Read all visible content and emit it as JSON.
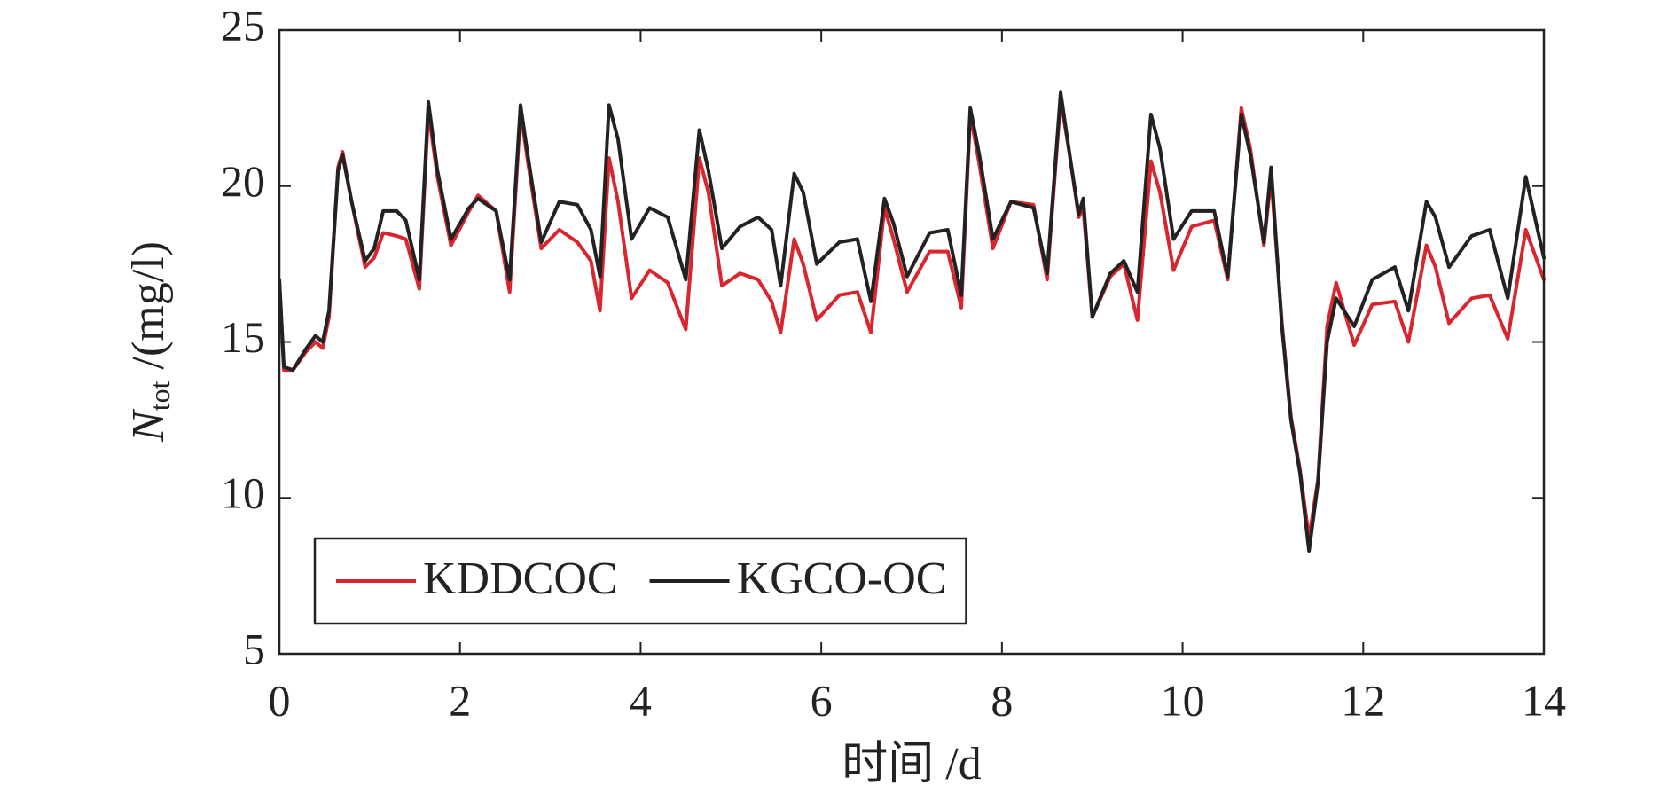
{
  "chart_data": {
    "type": "line",
    "xlabel": "时间 /d",
    "ylabel": [
      "N",
      "tot",
      " /(mg/l)"
    ],
    "xlim": [
      0,
      14
    ],
    "ylim": [
      5,
      25
    ],
    "xticks": [
      0,
      2,
      4,
      6,
      8,
      10,
      12,
      14
    ],
    "yticks": [
      5,
      10,
      15,
      20,
      25
    ],
    "legend": "lower left",
    "legend_columns": 2,
    "grid": false,
    "x": [
      0,
      0.05,
      0.15,
      0.3,
      0.4,
      0.48,
      0.55,
      0.65,
      0.7,
      0.8,
      0.95,
      1.05,
      1.15,
      1.3,
      1.4,
      1.55,
      1.65,
      1.75,
      1.9,
      2.1,
      2.2,
      2.4,
      2.55,
      2.67,
      2.75,
      2.9,
      3.1,
      3.3,
      3.45,
      3.55,
      3.65,
      3.75,
      3.9,
      4.1,
      4.3,
      4.5,
      4.65,
      4.75,
      4.9,
      5.1,
      5.3,
      5.45,
      5.55,
      5.7,
      5.8,
      5.95,
      6.2,
      6.4,
      6.55,
      6.7,
      6.8,
      6.95,
      7.2,
      7.4,
      7.55,
      7.65,
      7.75,
      7.9,
      8.1,
      8.35,
      8.5,
      8.65,
      8.75,
      8.85,
      8.9,
      9.0,
      9.2,
      9.35,
      9.5,
      9.65,
      9.75,
      9.9,
      10.1,
      10.35,
      10.5,
      10.65,
      10.75,
      10.9,
      10.98,
      11.1,
      11.2,
      11.3,
      11.4,
      11.5,
      11.6,
      11.7,
      11.9,
      12.1,
      12.35,
      12.5,
      12.7,
      12.8,
      12.95,
      13.2,
      13.4,
      13.6,
      13.8,
      13.9,
      14.0
    ],
    "series": [
      {
        "name": "KDDCOC",
        "color": "#d9262e",
        "values": [
          17,
          14.1,
          14.1,
          14.7,
          15.0,
          14.8,
          15.8,
          20.6,
          21.1,
          19.5,
          17.4,
          17.7,
          18.5,
          18.4,
          18.3,
          16.7,
          22.4,
          20.3,
          18.1,
          19.2,
          19.7,
          19.2,
          16.6,
          22.4,
          20.8,
          18.0,
          18.6,
          18.2,
          17.6,
          16.0,
          20.9,
          19.5,
          16.4,
          17.3,
          16.9,
          15.4,
          20.9,
          19.8,
          16.8,
          17.2,
          17.0,
          16.3,
          15.3,
          18.3,
          17.5,
          15.7,
          16.5,
          16.6,
          15.3,
          19.3,
          18.3,
          16.6,
          17.9,
          17.9,
          16.1,
          22.3,
          20.7,
          18.0,
          19.5,
          19.4,
          17.0,
          22.8,
          21.0,
          19.0,
          19.3,
          15.8,
          17.1,
          17.5,
          15.7,
          20.8,
          19.8,
          17.3,
          18.7,
          18.9,
          17.0,
          22.5,
          21.2,
          18.1,
          20.3,
          15.6,
          12.6,
          10.9,
          8.7,
          10.6,
          15.5,
          16.9,
          14.9,
          16.2,
          16.3,
          15.0,
          18.1,
          17.4,
          15.6,
          16.4,
          16.5,
          15.1,
          18.6,
          17.8,
          17.0
        ]
      },
      {
        "name": "KGCO-OC",
        "color": "#222222",
        "values": [
          17,
          14.2,
          14.1,
          14.8,
          15.2,
          15.0,
          16,
          20.5,
          21.0,
          19.5,
          17.6,
          18.0,
          19.2,
          19.2,
          18.9,
          17.0,
          22.7,
          20.5,
          18.3,
          19.3,
          19.6,
          19.2,
          17.0,
          22.6,
          21.0,
          18.2,
          19.5,
          19.4,
          18.6,
          17.1,
          22.6,
          21.5,
          18.3,
          19.3,
          19.0,
          17.0,
          21.8,
          20.5,
          18.0,
          18.7,
          19.0,
          18.6,
          16.8,
          20.4,
          19.8,
          17.5,
          18.2,
          18.3,
          16.3,
          19.6,
          18.8,
          17.1,
          18.5,
          18.6,
          16.5,
          22.5,
          21.0,
          18.3,
          19.5,
          19.3,
          17.2,
          23.0,
          21.0,
          19.1,
          19.6,
          15.8,
          17.2,
          17.6,
          16.6,
          22.3,
          21.2,
          18.3,
          19.2,
          19.2,
          17.1,
          22.3,
          21.0,
          18.2,
          20.6,
          15.5,
          12.5,
          10.8,
          8.3,
          10.5,
          15.0,
          16.4,
          15.5,
          17.0,
          17.4,
          16.0,
          19.5,
          19.0,
          17.4,
          18.4,
          18.6,
          16.4,
          20.3,
          19.0,
          17.7
        ]
      }
    ]
  }
}
